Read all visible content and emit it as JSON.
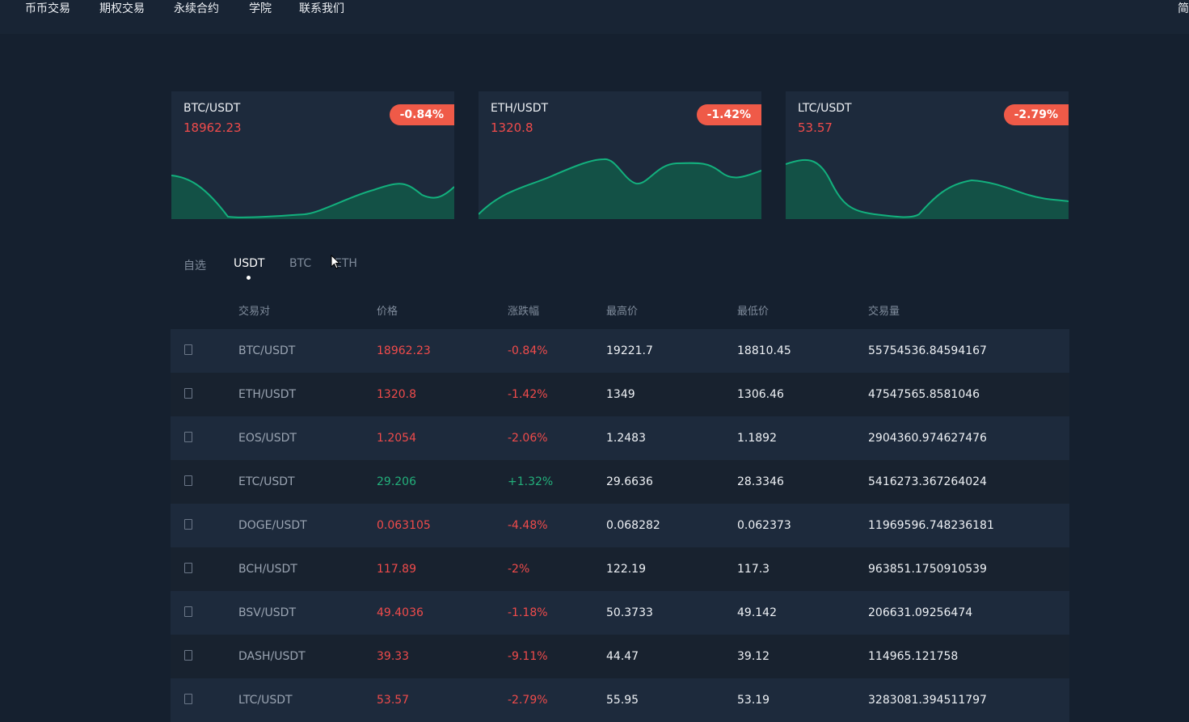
{
  "nav": {
    "items": [
      "币币交易",
      "期权交易",
      "永续合约",
      "学院",
      "联系我们"
    ],
    "lang": "简"
  },
  "colors": {
    "down": "#f04b4b",
    "up": "#23b07b",
    "badge": "#ef5a48",
    "chart_line": "#13b07d",
    "chart_fill": "#125848"
  },
  "cards": [
    {
      "pair": "BTC/USDT",
      "price": "18962.23",
      "change": "-0.84%"
    },
    {
      "pair": "ETH/USDT",
      "price": "1320.8",
      "change": "-1.42%"
    },
    {
      "pair": "LTC/USDT",
      "price": "53.57",
      "change": "-2.79%"
    }
  ],
  "tabs": [
    {
      "label": "自选",
      "active": false
    },
    {
      "label": "USDT",
      "active": true
    },
    {
      "label": "BTC",
      "active": false
    },
    {
      "label": "ETH",
      "active": false
    }
  ],
  "table": {
    "headers": [
      "交易对",
      "价格",
      "涨跌幅",
      "最高价",
      "最低价",
      "交易量"
    ],
    "rows": [
      {
        "pair": "BTC/USDT",
        "price": "18962.23",
        "change": "-0.84%",
        "high": "19221.7",
        "low": "18810.45",
        "volume": "55754536.84594167",
        "trend": "down"
      },
      {
        "pair": "ETH/USDT",
        "price": "1320.8",
        "change": "-1.42%",
        "high": "1349",
        "low": "1306.46",
        "volume": "47547565.8581046",
        "trend": "down"
      },
      {
        "pair": "EOS/USDT",
        "price": "1.2054",
        "change": "-2.06%",
        "high": "1.2483",
        "low": "1.1892",
        "volume": "2904360.974627476",
        "trend": "down"
      },
      {
        "pair": "ETC/USDT",
        "price": "29.206",
        "change": "+1.32%",
        "high": "29.6636",
        "low": "28.3346",
        "volume": "5416273.367264024",
        "trend": "up"
      },
      {
        "pair": "DOGE/USDT",
        "price": "0.063105",
        "change": "-4.48%",
        "high": "0.068282",
        "low": "0.062373",
        "volume": "11969596.748236181",
        "trend": "down"
      },
      {
        "pair": "BCH/USDT",
        "price": "117.89",
        "change": "-2%",
        "high": "122.19",
        "low": "117.3",
        "volume": "963851.1750910539",
        "trend": "down"
      },
      {
        "pair": "BSV/USDT",
        "price": "49.4036",
        "change": "-1.18%",
        "high": "50.3733",
        "low": "49.142",
        "volume": "206631.09256474",
        "trend": "down"
      },
      {
        "pair": "DASH/USDT",
        "price": "39.33",
        "change": "-9.11%",
        "high": "44.47",
        "low": "39.12",
        "volume": "114965.121758",
        "trend": "down"
      },
      {
        "pair": "LTC/USDT",
        "price": "53.57",
        "change": "-2.79%",
        "high": "55.95",
        "low": "53.19",
        "volume": "3283081.394511797",
        "trend": "down"
      }
    ]
  }
}
